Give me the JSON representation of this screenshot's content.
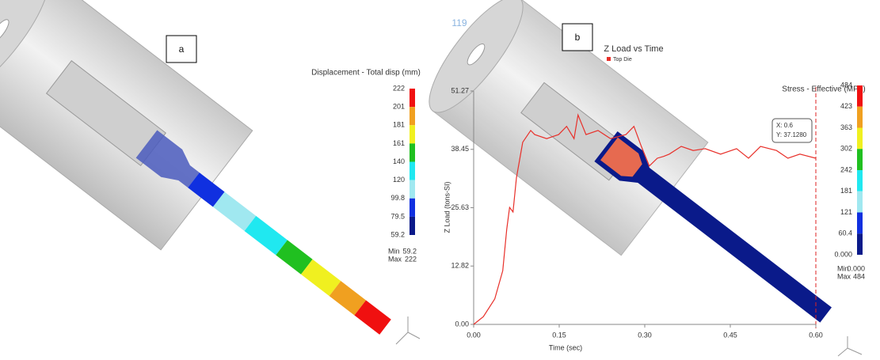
{
  "page_number": "119",
  "panel_a": {
    "label": "a",
    "legend_title": "Displacement - Total disp (mm)",
    "scale_labels": [
      "222",
      "201",
      "181",
      "161",
      "140",
      "120",
      "99.8",
      "79.5",
      "59.2"
    ],
    "min_label": "Min",
    "min_value": "59.2",
    "max_label": "Max",
    "max_value": "222"
  },
  "panel_b": {
    "label": "b",
    "legend_title": "Stress - Effective (MPa)",
    "scale_labels": [
      "484",
      "423",
      "363",
      "302",
      "242",
      "181",
      "121",
      "60.4",
      "0.000"
    ],
    "min_label": "Min",
    "min_value": "0.000",
    "max_label": "Max",
    "max_value": "484",
    "cursor_x": "X: 0.6",
    "cursor_y": "Y: 37.1280"
  },
  "chart_data": {
    "type": "line",
    "title": "Z Load vs Time",
    "xlabel": "Time (sec)",
    "ylabel": "Z Load (tons-SI)",
    "x": [
      0,
      0.017,
      0.037,
      0.051,
      0.058,
      0.063,
      0.069,
      0.075,
      0.086,
      0.1,
      0.107,
      0.128,
      0.149,
      0.163,
      0.176,
      0.183,
      0.197,
      0.218,
      0.24,
      0.267,
      0.281,
      0.294,
      0.308,
      0.322,
      0.333,
      0.343,
      0.364,
      0.385,
      0.406,
      0.433,
      0.461,
      0.482,
      0.503,
      0.531,
      0.551,
      0.572,
      0.6
    ],
    "series": [
      {
        "name": "Top Die",
        "color": "#e8302a",
        "values": [
          0,
          1.7,
          5.6,
          11.8,
          20.9,
          25.7,
          24.7,
          32.2,
          40,
          42.6,
          41.7,
          40.8,
          41.7,
          43.5,
          40.8,
          46,
          41.7,
          42.6,
          40.8,
          41.7,
          43.5,
          39.1,
          34.8,
          36.5,
          36.9,
          37.4,
          39.1,
          38.2,
          38.6,
          37.4,
          38.6,
          36.5,
          39.1,
          38.2,
          36.5,
          37.4,
          36.5
        ]
      }
    ],
    "xlim": [
      0,
      0.6
    ],
    "ylim": [
      0,
      51.27
    ],
    "xticks": [
      {
        "value": 0,
        "label": "0.00"
      },
      {
        "value": 0.15,
        "label": "0.15"
      },
      {
        "value": 0.3,
        "label": "0.30"
      },
      {
        "value": 0.45,
        "label": "0.45"
      },
      {
        "value": 0.6,
        "label": "0.60"
      }
    ],
    "yticks": [
      {
        "value": 0,
        "label": "0.00"
      },
      12.82,
      25.63,
      38.45,
      51.27
    ]
  }
}
